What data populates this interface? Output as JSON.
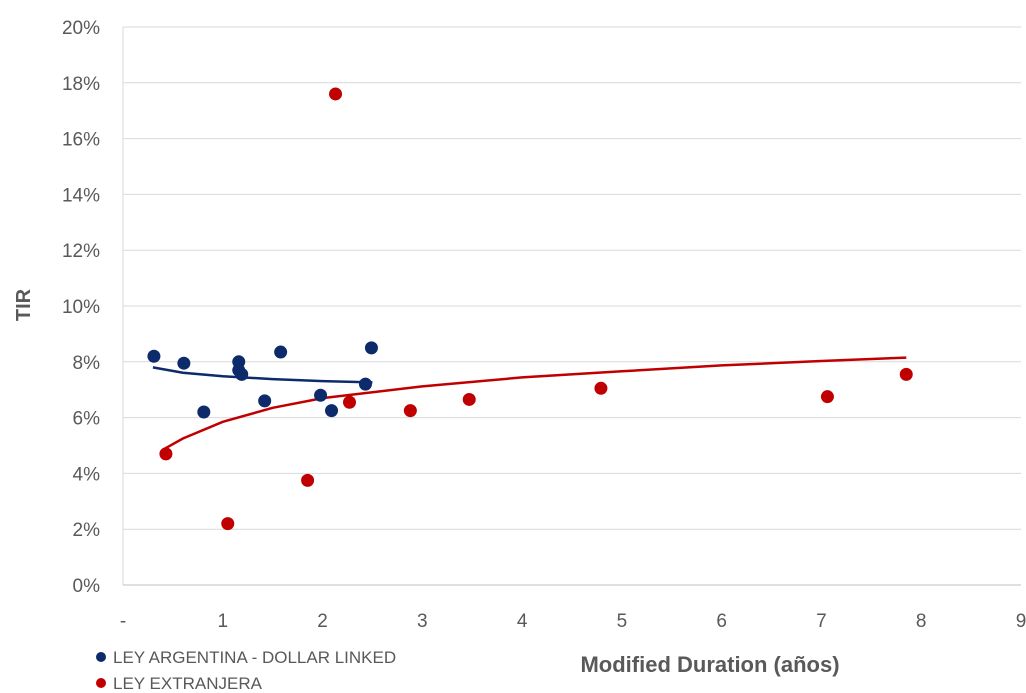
{
  "chart_data": {
    "type": "scatter",
    "title": "",
    "xlabel": "Modified Duration (años)",
    "ylabel": "TIR",
    "xlim": [
      0,
      9
    ],
    "ylim": [
      0,
      20
    ],
    "x_ticks": [
      {
        "value": 0,
        "label": "-"
      },
      {
        "value": 1,
        "label": "1"
      },
      {
        "value": 2,
        "label": "2"
      },
      {
        "value": 3,
        "label": "3"
      },
      {
        "value": 4,
        "label": "4"
      },
      {
        "value": 5,
        "label": "5"
      },
      {
        "value": 6,
        "label": "6"
      },
      {
        "value": 7,
        "label": "7"
      },
      {
        "value": 8,
        "label": "8"
      },
      {
        "value": 9,
        "label": "9"
      }
    ],
    "y_ticks": [
      {
        "value": 0,
        "label": "0%"
      },
      {
        "value": 2,
        "label": "2%"
      },
      {
        "value": 4,
        "label": "4%"
      },
      {
        "value": 6,
        "label": "6%"
      },
      {
        "value": 8,
        "label": "8%"
      },
      {
        "value": 10,
        "label": "10%"
      },
      {
        "value": 12,
        "label": "12%"
      },
      {
        "value": 14,
        "label": "14%"
      },
      {
        "value": 16,
        "label": "16%"
      },
      {
        "value": 18,
        "label": "18%"
      },
      {
        "value": 20,
        "label": "20%"
      }
    ],
    "grid": "horizontal",
    "legend_position": "bottom-left",
    "series": [
      {
        "name": "LEY ARGENTINA - DOLLAR LINKED",
        "color": "#0d2a6b",
        "points": [
          [
            0.31,
            8.2
          ],
          [
            0.61,
            7.95
          ],
          [
            0.81,
            6.2
          ],
          [
            1.16,
            8.0
          ],
          [
            1.16,
            7.7
          ],
          [
            1.19,
            7.55
          ],
          [
            1.42,
            6.6
          ],
          [
            1.58,
            8.35
          ],
          [
            1.98,
            6.8
          ],
          [
            2.09,
            6.25
          ],
          [
            2.43,
            7.2
          ],
          [
            2.49,
            8.5
          ]
        ],
        "trendline": [
          [
            0.3,
            7.8
          ],
          [
            0.6,
            7.61
          ],
          [
            1.0,
            7.48
          ],
          [
            1.5,
            7.38
          ],
          [
            2.0,
            7.31
          ],
          [
            2.5,
            7.26
          ]
        ]
      },
      {
        "name": "LEY EXTRANJERA",
        "color": "#c00000",
        "points": [
          [
            0.43,
            4.7
          ],
          [
            1.05,
            2.2
          ],
          [
            1.85,
            3.75
          ],
          [
            2.13,
            17.6
          ],
          [
            2.27,
            6.55
          ],
          [
            2.88,
            6.25
          ],
          [
            3.47,
            6.65
          ],
          [
            4.79,
            7.05
          ],
          [
            7.06,
            6.75
          ],
          [
            7.85,
            7.55
          ]
        ],
        "trendline": [
          [
            0.4,
            4.85
          ],
          [
            0.6,
            5.25
          ],
          [
            1.0,
            5.85
          ],
          [
            1.5,
            6.35
          ],
          [
            2.0,
            6.7
          ],
          [
            3.0,
            7.12
          ],
          [
            4.0,
            7.44
          ],
          [
            5.0,
            7.66
          ],
          [
            6.0,
            7.87
          ],
          [
            7.0,
            8.03
          ],
          [
            7.85,
            8.15
          ]
        ]
      }
    ]
  }
}
